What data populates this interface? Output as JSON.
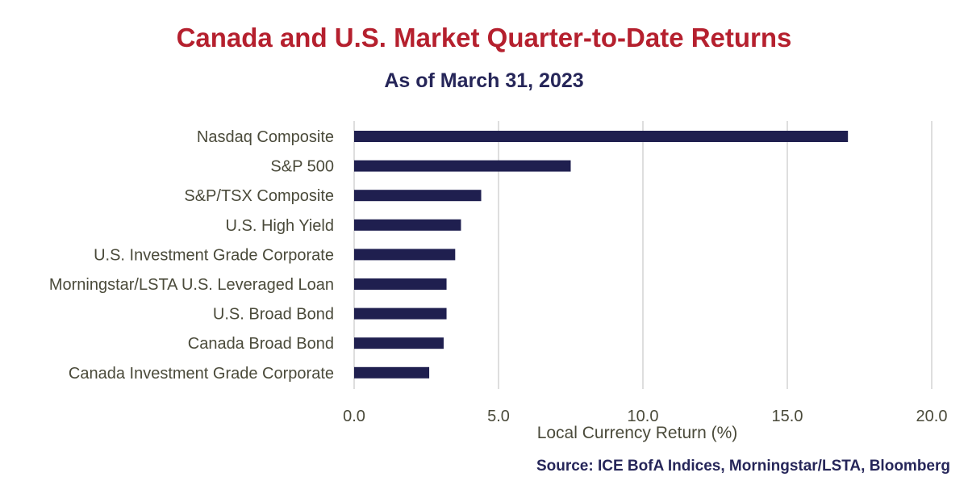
{
  "chart_data": {
    "type": "bar",
    "orientation": "horizontal",
    "title": "Canada and U.S. Market Quarter-to-Date Returns",
    "subtitle": "As of March 31, 2023",
    "xlabel": "Local Currency Return (%)",
    "ylabel": "",
    "xlim": [
      0,
      20
    ],
    "x_ticks": [
      "0.0",
      "5.0",
      "10.0",
      "15.0",
      "20.0"
    ],
    "x_tick_values": [
      0,
      5,
      10,
      15,
      20
    ],
    "grid": true,
    "categories": [
      "Nasdaq Composite",
      "S&P 500",
      "S&P/TSX Composite",
      "U.S. High Yield",
      "U.S. Investment Grade Corporate",
      "Morningstar/LSTA U.S. Leveraged Loan",
      "U.S. Broad Bond",
      "Canada Broad Bond",
      "Canada Investment Grade Corporate"
    ],
    "values": [
      17.1,
      7.5,
      4.4,
      3.7,
      3.5,
      3.2,
      3.2,
      3.1,
      2.6
    ],
    "bar_color": "#1f1f4f",
    "grid_color": "#d4d4d4",
    "source": "Source: ICE BofA Indices, Morningstar/LSTA, Bloomberg"
  }
}
